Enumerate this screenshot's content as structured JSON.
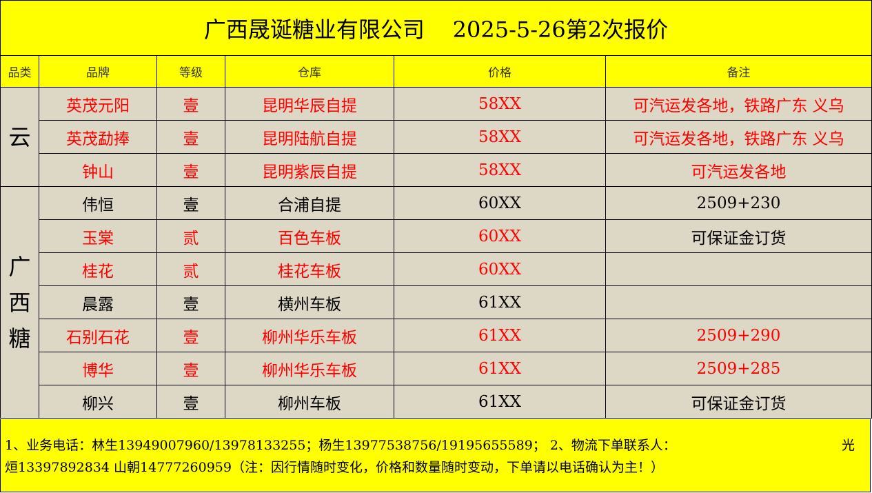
{
  "title": {
    "company": "广西晟诞糖业有限公司",
    "quote": "2025-5-26第2次报价"
  },
  "headers": [
    "品类",
    "品牌",
    "等级",
    "仓库",
    "价格",
    "备注"
  ],
  "colors": {
    "header_bg": "#ffff00",
    "cell_bg": "#ddd8c5",
    "highlight_text": "#ff0000"
  },
  "categories": [
    {
      "label": "云",
      "rows": 3
    },
    {
      "label": "广西糖",
      "rows": 7
    }
  ],
  "rows": [
    {
      "brand": "英茂元阳",
      "grade": "壹",
      "warehouse": "昆明华辰自提",
      "price": "58XX",
      "note": "可汽运发各地，铁路广东  义乌",
      "red": true
    },
    {
      "brand": "英茂勐捧",
      "grade": "壹",
      "warehouse": "昆明陆航自提",
      "price": "58XX",
      "note": "可汽运发各地，铁路广东  义乌",
      "red": true
    },
    {
      "brand": "钟山",
      "grade": "壹",
      "warehouse": "昆明紫辰自提",
      "price": "58XX",
      "note": "可汽运发各地",
      "red": true
    },
    {
      "brand": "伟恒",
      "grade": "壹",
      "warehouse": "合浦自提",
      "price": "60XX",
      "note": "2509+230",
      "red": false
    },
    {
      "brand": "玉棠",
      "grade": "贰",
      "warehouse": "百色车板",
      "price": "60XX",
      "note": "可保证金订货",
      "red": true,
      "note_red": false
    },
    {
      "brand": "桂花",
      "grade": "贰",
      "warehouse": "桂花车板",
      "price": "60XX",
      "note": "",
      "red": true
    },
    {
      "brand": "晨露",
      "grade": "壹",
      "warehouse": "横州车板",
      "price": "61XX",
      "note": "",
      "red": false
    },
    {
      "brand": "石别石花",
      "grade": "壹",
      "warehouse": "柳州华乐车板",
      "price": "61XX",
      "note": "2509+290",
      "red": true
    },
    {
      "brand": "博华",
      "grade": "壹",
      "warehouse": "柳州华乐车板",
      "price": "61XX",
      "note": "2509+285",
      "red": true
    },
    {
      "brand": "柳兴",
      "grade": "壹",
      "warehouse": "柳州车板",
      "price": "61XX",
      "note": "可保证金订货",
      "red": false
    }
  ],
  "footer": {
    "line1_left": "1、业务电话：林生13949007960/13978133255；杨生13977538756/19195655589；   2、物流下单联系人：",
    "line1_right": "光",
    "line2": "烜13397892834    山朝14777260959（注：因行情随时变化，价格和数量随时变动，下单请以电话确认为主！）"
  }
}
